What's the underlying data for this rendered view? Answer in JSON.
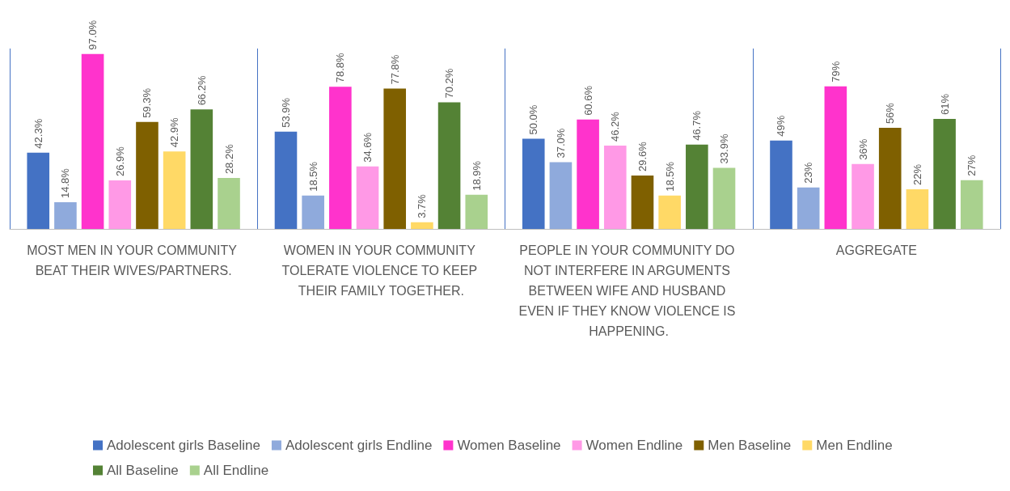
{
  "chart_data": {
    "type": "bar",
    "categories": [
      "MOST MEN IN YOUR COMMUNITY BEAT THEIR WIVES/PARTNERS.",
      "WOMEN IN YOUR COMMUNITY TOLERATE VIOLENCE TO KEEP THEIR FAMILY TOGETHER.",
      "PEOPLE IN YOUR COMMUNITY DO NOT INTERFERE IN ARGUMENTS BETWEEN WIFE AND HUSBAND EVEN IF THEY KNOW VIOLENCE IS HAPPENING.",
      "AGGREGATE"
    ],
    "series": [
      {
        "name": "Adolescent girls Baseline",
        "color": "#4472c4",
        "values": [
          42.3,
          53.9,
          50.0,
          49
        ],
        "value_labels": [
          "42.3%",
          "53.9%",
          "50.0%",
          "49%"
        ]
      },
      {
        "name": "Adolescent girls Endline",
        "color": "#8faadc",
        "values": [
          14.8,
          18.5,
          37.0,
          23
        ],
        "value_labels": [
          "14.8%",
          "18.5%",
          "37.0%",
          "23%"
        ]
      },
      {
        "name": "Women Baseline",
        "color": "#ff33cc",
        "values": [
          97.0,
          78.8,
          60.6,
          79
        ],
        "value_labels": [
          "97.0%",
          "78.8%",
          "60.6%",
          "79%"
        ]
      },
      {
        "name": "Women Endline",
        "color": "#ff99e6",
        "values": [
          26.9,
          34.6,
          46.2,
          36
        ],
        "value_labels": [
          "26.9%",
          "34.6%",
          "46.2%",
          "36%"
        ]
      },
      {
        "name": "Men Baseline",
        "color": "#7f6000",
        "values": [
          59.3,
          77.8,
          29.6,
          56
        ],
        "value_labels": [
          "59.3%",
          "77.8%",
          "29.6%",
          "56%"
        ]
      },
      {
        "name": "Men Endline",
        "color": "#ffd966",
        "values": [
          42.9,
          3.7,
          18.5,
          22
        ],
        "value_labels": [
          "42.9%",
          "3.7%",
          "18.5%",
          "22%"
        ]
      },
      {
        "name": "All Baseline",
        "color": "#548235",
        "values": [
          66.2,
          70.2,
          46.7,
          61
        ],
        "value_labels": [
          "66.2%",
          "70.2%",
          "46.7%",
          "61%"
        ]
      },
      {
        "name": "All Endline",
        "color": "#a9d18e",
        "values": [
          28.2,
          18.9,
          33.9,
          27
        ],
        "value_labels": [
          "28.2%",
          "18.9%",
          "33.9%",
          "27%"
        ]
      }
    ],
    "grid": "x",
    "legend": "bottom",
    "tick_labels": "x"
  }
}
